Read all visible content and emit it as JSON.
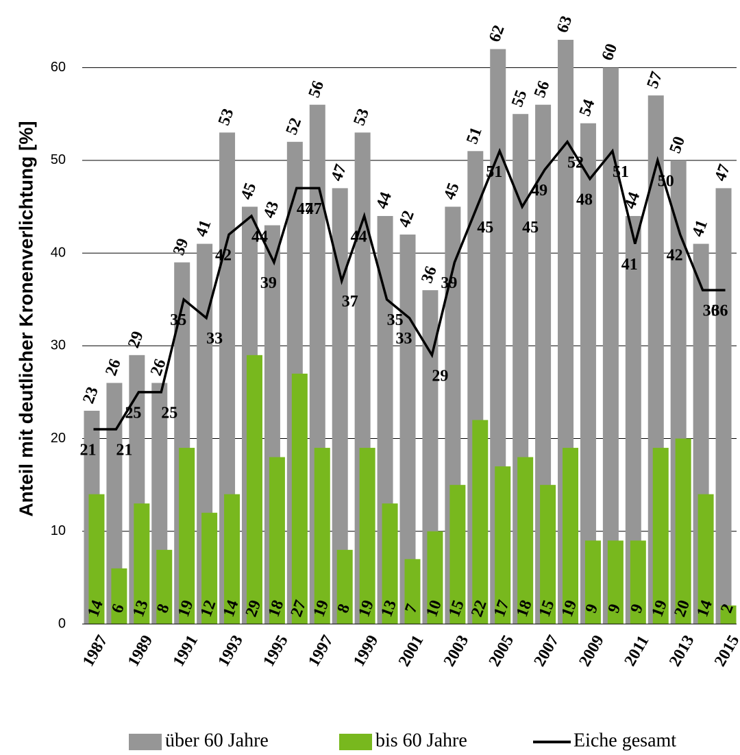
{
  "chart_data": {
    "type": "bar",
    "y_label": "Anteil mit deutlicher Kronenverlichtung [%]",
    "categories": [
      "1987",
      null,
      "1989",
      null,
      "1991",
      null,
      "1993",
      null,
      "1995",
      null,
      "1997",
      null,
      "1999",
      null,
      "2001",
      null,
      "2003",
      null,
      "2005",
      null,
      "2007",
      null,
      "2009",
      null,
      "2011",
      null,
      "2013",
      null,
      "2015"
    ],
    "series": [
      {
        "name": "über 60 Jahre",
        "color": "#969696",
        "values": [
          23,
          26,
          29,
          26,
          39,
          41,
          53,
          45,
          43,
          52,
          56,
          47,
          53,
          44,
          42,
          36,
          45,
          51,
          62,
          55,
          56,
          63,
          54,
          60,
          44,
          57,
          50,
          41,
          47
        ]
      },
      {
        "name": "bis 60 Jahre",
        "color": "#78b81e",
        "values": [
          14,
          6,
          13,
          8,
          19,
          12,
          14,
          29,
          18,
          27,
          19,
          8,
          19,
          13,
          7,
          10,
          15,
          22,
          17,
          18,
          15,
          19,
          9,
          9,
          9,
          19,
          20,
          14,
          2
        ]
      },
      {
        "name": "Eiche gesamt",
        "color": "#000000",
        "type": "line",
        "values": [
          21,
          21,
          25,
          25,
          35,
          33,
          42,
          44,
          39,
          47,
          47,
          37,
          44,
          35,
          33,
          29,
          39,
          45,
          51,
          45,
          49,
          52,
          48,
          51,
          41,
          50,
          42,
          36,
          36
        ]
      }
    ],
    "ylim": [
      0,
      65
    ],
    "yticks": [
      0,
      10,
      20,
      30,
      40,
      50,
      60
    ],
    "grid": true
  }
}
